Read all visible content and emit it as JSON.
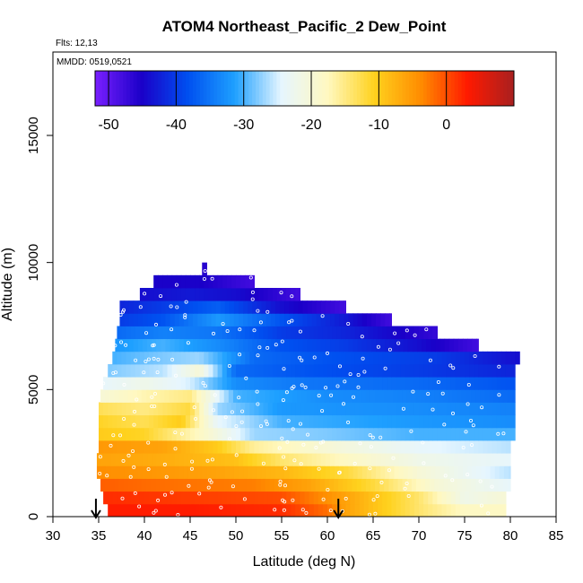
{
  "chart_data": {
    "type": "heatmap",
    "title": "ATOM4 Northeast_Pacific_2 Dew_Point",
    "flights_label": "Flts: 12,13",
    "date_label": "MMDD: 0519,0521",
    "xlabel": "Latitude (deg N)",
    "ylabel": "Altitude (m)",
    "xlim": [
      30,
      85
    ],
    "ylim": [
      0,
      17500
    ],
    "xticks": [
      "30",
      "35",
      "40",
      "45",
      "50",
      "55",
      "60",
      "65",
      "70",
      "75",
      "80",
      "85"
    ],
    "yticks": [
      "0",
      "5000",
      "10000",
      "15000"
    ],
    "colorbar": {
      "range": [
        -52,
        10
      ],
      "ticks": [
        "-50",
        "-40",
        "-30",
        "-20",
        "-10",
        "0"
      ],
      "colors": [
        "#7a1fff",
        "#1a00c8",
        "#0050f0",
        "#1ea0ff",
        "#e6f6ff",
        "#fff8c0",
        "#ffd21e",
        "#ff8c00",
        "#ff1a00",
        "#a82020"
      ]
    },
    "arrows_lat": [
      34.7,
      61.2
    ],
    "bands": [
      {
        "alt": 250,
        "lat_start": 36.0,
        "lat_end": 79.5,
        "lats": [
          36,
          45,
          55,
          60,
          62,
          70,
          75,
          79.5
        ],
        "values": [
          3,
          3,
          2,
          -2,
          -6,
          -14,
          -18,
          -18
        ]
      },
      {
        "alt": 750,
        "lat_start": 35.5,
        "lat_end": 79.5,
        "lats": [
          35.5,
          45,
          55,
          62,
          70,
          75,
          79.5
        ],
        "values": [
          2,
          1,
          0,
          -6,
          -14,
          -22,
          -20
        ]
      },
      {
        "alt": 1250,
        "lat_start": 35.2,
        "lat_end": 80.0,
        "lats": [
          35.2,
          42,
          52,
          58,
          65,
          72,
          80
        ],
        "values": [
          -1,
          -2,
          -3,
          -6,
          -12,
          -20,
          -24
        ]
      },
      {
        "alt": 1750,
        "lat_start": 34.8,
        "lat_end": 80.0,
        "lats": [
          34.8,
          42,
          48,
          55,
          62,
          70,
          80
        ],
        "values": [
          -4,
          -5,
          -6,
          -8,
          -12,
          -20,
          -26
        ]
      },
      {
        "alt": 2250,
        "lat_start": 34.8,
        "lat_end": 80.0,
        "lats": [
          34.8,
          42,
          50,
          55,
          62,
          70,
          80
        ],
        "values": [
          -6,
          -7,
          -9,
          -14,
          -18,
          -22,
          -24
        ]
      },
      {
        "alt": 2750,
        "lat_start": 35.0,
        "lat_end": 80.0,
        "lats": [
          35,
          42,
          48,
          52,
          60,
          70,
          80
        ],
        "values": [
          -5,
          -6,
          -10,
          -16,
          -20,
          -24,
          -26
        ]
      },
      {
        "alt": 3250,
        "lat_start": 35.0,
        "lat_end": 80.5,
        "lats": [
          35,
          40,
          46,
          52,
          60,
          70,
          80.5
        ],
        "values": [
          -10,
          -11,
          -18,
          -27,
          -28,
          -30,
          -30
        ]
      },
      {
        "alt": 3750,
        "lat_start": 35.0,
        "lat_end": 80.5,
        "lats": [
          35,
          40,
          44,
          48,
          55,
          70,
          80.5
        ],
        "values": [
          -11,
          -13,
          -10,
          -24,
          -30,
          -32,
          -33
        ]
      },
      {
        "alt": 4250,
        "lat_start": 35.0,
        "lat_end": 80.5,
        "lats": [
          35,
          40,
          45,
          48,
          55,
          70,
          80.5
        ],
        "values": [
          -13,
          -15,
          -12,
          -27,
          -32,
          -33,
          -34
        ]
      },
      {
        "alt": 4750,
        "lat_start": 35.2,
        "lat_end": 80.5,
        "lats": [
          35.2,
          40,
          45,
          50,
          60,
          70,
          80.5
        ],
        "values": [
          -20,
          -17,
          -15,
          -30,
          -33,
          -34,
          -36
        ]
      },
      {
        "alt": 5250,
        "lat_start": 35.5,
        "lat_end": 80.5,
        "lats": [
          35.5,
          40,
          45,
          50,
          58,
          70,
          80.5
        ],
        "values": [
          -24,
          -22,
          -25,
          -33,
          -35,
          -36,
          -38
        ]
      },
      {
        "alt": 5750,
        "lat_start": 36.0,
        "lat_end": 80.5,
        "lats": [
          36,
          42,
          46,
          50,
          58,
          70,
          80.5
        ],
        "values": [
          -28,
          -26,
          -20,
          -36,
          -38,
          -40,
          -42
        ]
      },
      {
        "alt": 6250,
        "lat_start": 36.5,
        "lat_end": 81.0,
        "lats": [
          36.5,
          42,
          46,
          52,
          60,
          72,
          81
        ],
        "values": [
          -30,
          -28,
          -27,
          -36,
          -38,
          -40,
          -44
        ]
      },
      {
        "alt": 6750,
        "lat_start": 36.8,
        "lat_end": 76.5,
        "lats": [
          36.8,
          42,
          48,
          55,
          62,
          70,
          76.5
        ],
        "values": [
          -32,
          -30,
          -33,
          -38,
          -40,
          -44,
          -48
        ]
      },
      {
        "alt": 7250,
        "lat_start": 37.0,
        "lat_end": 72.0,
        "lats": [
          37,
          42,
          48,
          55,
          62,
          72
        ],
        "values": [
          -36,
          -34,
          -35,
          -40,
          -42,
          -47
        ]
      },
      {
        "alt": 7750,
        "lat_start": 37.3,
        "lat_end": 67.0,
        "lats": [
          37.3,
          42,
          48,
          55,
          62,
          67
        ],
        "values": [
          -40,
          -38,
          -32,
          -38,
          -43,
          -48
        ]
      },
      {
        "alt": 8250,
        "lat_start": 37.3,
        "lat_end": 62.0,
        "lats": [
          37.3,
          42,
          48,
          55,
          62
        ],
        "values": [
          -42,
          -40,
          -37,
          -44,
          -48
        ]
      },
      {
        "alt": 8750,
        "lat_start": 39.5,
        "lat_end": 57.0,
        "lats": [
          39.5,
          45,
          50,
          57
        ],
        "values": [
          -44,
          -43,
          -44,
          -48
        ]
      },
      {
        "alt": 9250,
        "lat_start": 41.0,
        "lat_end": 52.0,
        "lats": [
          41,
          46,
          52
        ],
        "values": [
          -45,
          -45,
          -48
        ]
      },
      {
        "alt": 9750,
        "lat_start": 46.3,
        "lat_end": 46.8,
        "lats": [
          46.3,
          46.8
        ],
        "values": [
          -46,
          -46
        ]
      }
    ]
  }
}
